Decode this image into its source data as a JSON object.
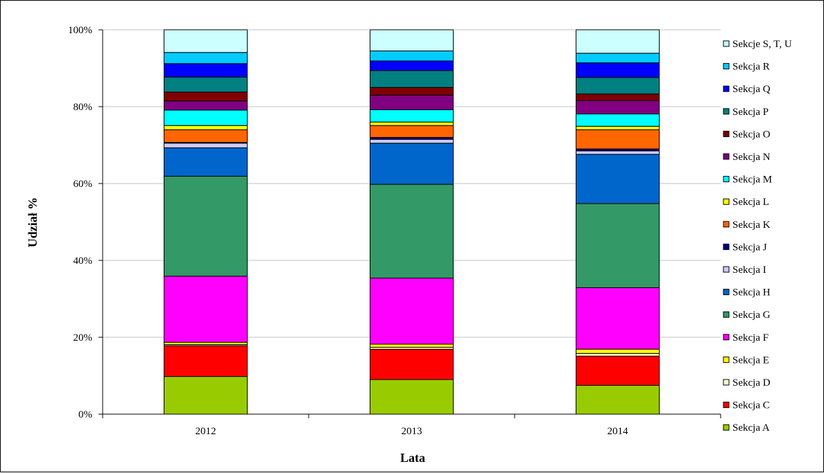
{
  "chart_data": {
    "type": "bar",
    "stacked": true,
    "normalized": true,
    "title": "",
    "xlabel": "Lata",
    "ylabel": "Udział %",
    "ylim": [
      0,
      100
    ],
    "yticks": [
      "0%",
      "20%",
      "40%",
      "60%",
      "80%",
      "100%"
    ],
    "grid": true,
    "legend_position": "right",
    "categories": [
      "2012",
      "2013",
      "2014"
    ],
    "series": [
      {
        "name": "Sekcja A",
        "color": "#99cc00",
        "values": [
          9.8,
          9.0,
          7.5
        ]
      },
      {
        "name": "Sekcja C",
        "color": "#ff0000",
        "values": [
          8.0,
          7.9,
          7.6
        ]
      },
      {
        "name": "Sekcja D",
        "color": "#ffffcc",
        "values": [
          0.3,
          0.5,
          0.7
        ]
      },
      {
        "name": "Sekcja E",
        "color": "#ffff00",
        "values": [
          0.6,
          0.8,
          1.1
        ]
      },
      {
        "name": "Sekcja F",
        "color": "#ff00ff",
        "values": [
          17.2,
          17.2,
          16.0
        ]
      },
      {
        "name": "Sekcja G",
        "color": "#339966",
        "values": [
          26.0,
          24.4,
          21.9
        ]
      },
      {
        "name": "Sekcja H",
        "color": "#0066cc",
        "values": [
          7.4,
          10.7,
          12.8
        ]
      },
      {
        "name": "Sekcja I",
        "color": "#ccccff",
        "values": [
          1.2,
          1.0,
          0.9
        ]
      },
      {
        "name": "Sekcja J",
        "color": "#000080",
        "values": [
          0.2,
          0.5,
          0.5
        ]
      },
      {
        "name": "Sekcja K",
        "color": "#ff6600",
        "values": [
          3.3,
          3.1,
          5.0
        ]
      },
      {
        "name": "Sekcja L",
        "color": "#ffff00",
        "values": [
          1.1,
          0.9,
          0.9
        ]
      },
      {
        "name": "Sekcja M",
        "color": "#00ffff",
        "values": [
          4.0,
          3.2,
          3.2
        ]
      },
      {
        "name": "Sekcja N",
        "color": "#800080",
        "values": [
          2.4,
          3.8,
          3.5
        ]
      },
      {
        "name": "Sekcja O",
        "color": "#800000",
        "values": [
          2.3,
          2.0,
          1.7
        ]
      },
      {
        "name": "Sekcja P",
        "color": "#008080",
        "values": [
          3.9,
          4.4,
          4.3
        ]
      },
      {
        "name": "Sekcja Q",
        "color": "#0000ff",
        "values": [
          3.5,
          2.5,
          3.8
        ]
      },
      {
        "name": "Sekcja R",
        "color": "#00ccff",
        "values": [
          2.9,
          2.6,
          2.5
        ]
      },
      {
        "name": "Sekcje S, T, U",
        "color": "#ccffff",
        "values": [
          5.9,
          5.5,
          6.1
        ]
      }
    ]
  }
}
